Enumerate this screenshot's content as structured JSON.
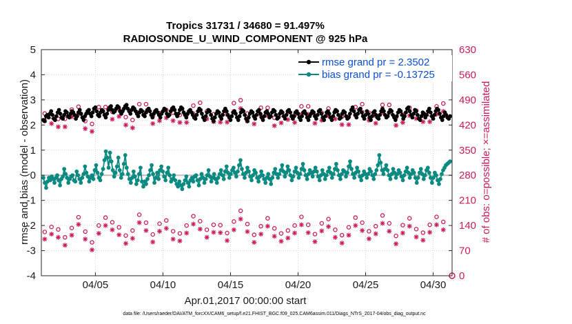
{
  "chart_data": {
    "type": "line",
    "title_line1": "Tropics 31731 / 34680 = 91.497%",
    "title_line2": "RADIOSONDE_U_WIND_COMPONENT @ 925 hPa",
    "xlabel": "Apr.01,2017 00:00:00 start",
    "ylabel": "rmse and bias (model - observation)",
    "y2label": "# of obs: o=possible; ×=assimilated",
    "xlim": [
      0,
      30.4
    ],
    "ylim": [
      -4,
      5
    ],
    "y2lim": [
      0,
      630
    ],
    "xticks": [
      {
        "day": 4,
        "label": "04/05"
      },
      {
        "day": 9,
        "label": "04/10"
      },
      {
        "day": 14,
        "label": "04/15"
      },
      {
        "day": 19,
        "label": "04/20"
      },
      {
        "day": 24,
        "label": "04/25"
      },
      {
        "day": 29,
        "label": "04/30"
      }
    ],
    "yticks": [
      "-4",
      "-3",
      "-2",
      "-1",
      "0",
      "1",
      "2",
      "3",
      "4",
      "5"
    ],
    "y2ticks": [
      "0",
      "70",
      "140",
      "210",
      "280",
      "350",
      "420",
      "490",
      "560",
      "630"
    ],
    "legend": [
      {
        "label": "rmse grand pr = 2.3502",
        "color": "#000000"
      },
      {
        "label": "bias grand pr = -0.13725",
        "color": "#0a8a80"
      }
    ],
    "series": [
      {
        "name": "rmse",
        "color": "#000000",
        "values": [
          2.2,
          2.15,
          2.35,
          2.4,
          2.3,
          2.45,
          2.55,
          2.4,
          2.25,
          2.2,
          2.35,
          2.5,
          2.6,
          2.45,
          2.3,
          2.25,
          2.4,
          2.55,
          2.5,
          2.35,
          2.3,
          2.45,
          2.55,
          2.5,
          2.4,
          2.25,
          2.35,
          2.5,
          2.6,
          2.45,
          2.3,
          2.2,
          2.35,
          2.45,
          2.55,
          2.6,
          2.45,
          2.35,
          2.5,
          2.65,
          2.7,
          2.55,
          2.4,
          2.35,
          2.5,
          2.6,
          2.55,
          2.4,
          2.3,
          2.45,
          2.6,
          2.7,
          2.75,
          2.6,
          2.5,
          2.55,
          2.65,
          2.75,
          2.7,
          2.55,
          2.45,
          2.55,
          2.65,
          2.75,
          2.8,
          2.65,
          2.55,
          2.45,
          2.6,
          2.7,
          2.65,
          2.55,
          2.45,
          2.35,
          2.5,
          2.6,
          2.55,
          2.4,
          2.35,
          2.5,
          2.6,
          2.65,
          2.55,
          2.4,
          2.3,
          2.45,
          2.55,
          2.6,
          2.5,
          2.4,
          2.3,
          2.45,
          2.55,
          2.65,
          2.6,
          2.45,
          2.35,
          2.4,
          2.55,
          2.65,
          2.7,
          2.6,
          2.45,
          2.35,
          2.45,
          2.6,
          2.7,
          2.65,
          2.5,
          2.4,
          2.3,
          2.45,
          2.55,
          2.6,
          2.5,
          2.4,
          2.3,
          2.25,
          2.4,
          2.55,
          2.65,
          2.6,
          2.45,
          2.3,
          2.2,
          2.35,
          2.5,
          2.6,
          2.55,
          2.4,
          2.25,
          2.15,
          2.3,
          2.45,
          2.55,
          2.5,
          2.35,
          2.25,
          2.4,
          2.55,
          2.65,
          2.55,
          2.4,
          2.3,
          2.2,
          2.35,
          2.5,
          2.55,
          2.45,
          2.3,
          2.2,
          2.35,
          2.5,
          2.6,
          2.55,
          2.4,
          2.25,
          2.15,
          2.3,
          2.45,
          2.55,
          2.5,
          2.35,
          2.25,
          2.4,
          2.55,
          2.6,
          2.45,
          2.3,
          2.2,
          2.35,
          2.5,
          2.55,
          2.45,
          2.3,
          2.35,
          2.5,
          2.6,
          2.55,
          2.4,
          2.25,
          2.3,
          2.45,
          2.55,
          2.5,
          2.35,
          2.25,
          2.4,
          2.55,
          2.6,
          2.5,
          2.35,
          2.25,
          2.35,
          2.5,
          2.55,
          2.45,
          2.3,
          2.2,
          2.35,
          2.5,
          2.55,
          2.45,
          2.3,
          2.2,
          2.35,
          2.45,
          2.55,
          2.5,
          2.35,
          2.25,
          2.4,
          2.55,
          2.6,
          2.45,
          2.3,
          2.2,
          2.35,
          2.5,
          2.55,
          2.45,
          2.3,
          2.2,
          2.35,
          2.5,
          2.6,
          2.55,
          2.4,
          2.25,
          2.3,
          2.45,
          2.55,
          2.5,
          2.35,
          2.25,
          2.3,
          2.45,
          2.6,
          2.7,
          2.55,
          2.4,
          2.3,
          2.45,
          2.6,
          2.65,
          2.5,
          2.35,
          2.25,
          2.4,
          2.55,
          2.45,
          2.3,
          2.2,
          2.35,
          2.5,
          2.55,
          2.4,
          2.3,
          2.25,
          2.4,
          2.55,
          2.65,
          2.55,
          2.4,
          2.3,
          2.35,
          2.5,
          2.6,
          2.55,
          2.4,
          2.3,
          2.2,
          2.35,
          2.5,
          2.6,
          2.55,
          2.4,
          2.25,
          2.35,
          2.5,
          2.65,
          2.7,
          2.55,
          2.4,
          2.3,
          2.45,
          2.6,
          2.55,
          2.4,
          2.25,
          2.2,
          2.35,
          2.5,
          2.45,
          2.3,
          2.4,
          2.55,
          2.65,
          2.5,
          2.35,
          2.25,
          2.4,
          2.55,
          2.65,
          2.6,
          2.45,
          2.3,
          2.2,
          2.35,
          2.5,
          2.4,
          2.3,
          2.25,
          2.35
        ]
      },
      {
        "name": "bias",
        "color": "#0a8a80",
        "values": [
          -0.1,
          -0.3,
          -0.5,
          -0.25,
          -0.1,
          -0.2,
          -0.05,
          -0.15,
          -0.3,
          -0.1,
          0.0,
          -0.2,
          -0.4,
          -0.15,
          -0.05,
          0.25,
          0.05,
          -0.1,
          -0.3,
          -0.15,
          -0.05,
          0.0,
          -0.2,
          -0.25,
          0.15,
          0.0,
          -0.15,
          -0.3,
          -0.1,
          0.05,
          0.35,
          0.1,
          -0.05,
          -0.25,
          -0.1,
          0.0,
          -0.15,
          0.2,
          0.4,
          0.1,
          -0.1,
          -0.2,
          0.05,
          0.25,
          0.6,
          0.95,
          0.7,
          0.3,
          0.9,
          0.55,
          0.2,
          -0.05,
          0.1,
          0.35,
          0.7,
          0.2,
          -0.1,
          0.05,
          0.45,
          0.8,
          0.3,
          0.05,
          -0.15,
          -0.3,
          -0.1,
          0.15,
          -0.05,
          -0.35,
          -0.2,
          0.05,
          0.3,
          -0.25,
          -0.45,
          -0.25,
          -0.35,
          -0.15,
          0.0,
          0.2,
          0.4,
          0.05,
          -0.3,
          -0.1,
          0.1,
          -0.15,
          0.2,
          0.35,
          0.15,
          -0.05,
          -0.2,
          0.1,
          0.3,
          0.0,
          -0.25,
          -0.15,
          0.0,
          -0.2,
          -0.35,
          -0.45,
          -0.25,
          -0.4,
          -0.55,
          -0.35,
          -0.2,
          -0.05,
          -0.3,
          -0.45,
          -0.2,
          -0.1,
          -0.25,
          -0.05,
          0.0,
          -0.2,
          -0.4,
          -0.15,
          0.05,
          -0.1,
          -0.3,
          -0.15,
          0.0,
          0.2,
          -0.05,
          -0.25,
          -0.1,
          0.05,
          -0.15,
          -0.3,
          -0.1,
          0.05,
          0.2,
          0.0,
          -0.15,
          0.15,
          0.35,
          0.1,
          -0.1,
          0.05,
          0.2,
          0.3,
          0.1,
          -0.05,
          0.15,
          0.4,
          0.6,
          0.25,
          0.05,
          -0.1,
          0.1,
          0.3,
          0.15,
          -0.05,
          -0.2,
          0.0,
          0.2,
          0.1,
          -0.1,
          -0.25,
          -0.05,
          0.15,
          0.0,
          -0.15,
          -0.3,
          -0.1,
          0.05,
          -0.15,
          -0.35,
          -0.1,
          0.1,
          0.25,
          0.05,
          -0.1,
          0.05,
          0.2,
          0.4,
          0.15,
          -0.05,
          0.1,
          0.35,
          0.2,
          0.0,
          -0.2,
          -0.05,
          0.15,
          0.3,
          0.1,
          -0.1,
          0.05,
          0.25,
          0.45,
          0.2,
          0.0,
          -0.15,
          0.05,
          0.2,
          0.1,
          -0.05,
          0.15,
          0.3,
          0.15,
          -0.05,
          -0.2,
          0.0,
          0.2,
          0.05,
          -0.15,
          0.0,
          0.15,
          0.3,
          0.1,
          -0.1,
          0.05,
          0.25,
          0.45,
          0.2,
          0.0,
          -0.15,
          0.05,
          0.2,
          0.15,
          -0.05,
          0.1,
          0.35,
          0.55,
          0.25,
          0.05,
          -0.1,
          0.1,
          0.3,
          0.15,
          -0.05,
          -0.2,
          0.0,
          0.15,
          0.05,
          -0.1,
          0.05,
          0.25,
          0.15,
          0.0,
          -0.15,
          0.05,
          0.2,
          0.4,
          0.8,
          0.5,
          0.2,
          0.05,
          0.25,
          0.4,
          0.2,
          0.0,
          -0.15,
          0.05,
          0.25,
          0.1,
          -0.1,
          0.05,
          0.2,
          0.1,
          -0.05,
          -0.2,
          0.0,
          0.15,
          0.3,
          0.1,
          -0.1,
          0.05,
          0.2,
          0.1,
          -0.1,
          -0.3,
          -0.1,
          0.1,
          0.25,
          0.05,
          -0.15,
          0.0,
          0.2,
          0.3,
          0.1,
          -0.1,
          -0.3,
          -0.1,
          0.1,
          0.0,
          -0.2,
          -0.35,
          -0.15,
          0.05,
          0.2,
          0.3,
          0.4,
          0.45,
          0.5,
          0.55
        ]
      }
    ],
    "obs_possible": [
      {
        "day": 0,
        "count": 452
      },
      {
        "day": 1,
        "count": 437
      },
      {
        "day": 2,
        "count": 463
      },
      {
        "day": 3,
        "count": 431
      },
      {
        "day": 4,
        "count": 470
      },
      {
        "day": 5,
        "count": 457
      },
      {
        "day": 6,
        "count": 442
      },
      {
        "day": 7,
        "count": 478
      },
      {
        "day": 8,
        "count": 445
      },
      {
        "day": 9,
        "count": 462
      },
      {
        "day": 10,
        "count": 448
      },
      {
        "day": 11,
        "count": 474
      },
      {
        "day": 12,
        "count": 458
      },
      {
        "day": 13,
        "count": 449
      },
      {
        "day": 14,
        "count": 481
      },
      {
        "day": 15,
        "count": 452
      },
      {
        "day": 16,
        "count": 468
      },
      {
        "day": 17,
        "count": 440
      },
      {
        "day": 18,
        "count": 456
      },
      {
        "day": 19,
        "count": 472
      },
      {
        "day": 20,
        "count": 446
      },
      {
        "day": 21,
        "count": 466
      },
      {
        "day": 22,
        "count": 443
      },
      {
        "day": 23,
        "count": 470
      },
      {
        "day": 24,
        "count": 454
      },
      {
        "day": 25,
        "count": 476
      },
      {
        "day": 26,
        "count": 441
      },
      {
        "day": 27,
        "count": 468
      },
      {
        "day": 28,
        "count": 450
      },
      {
        "day": 29,
        "count": 472
      }
    ],
    "obs_assimilated": [
      {
        "day": 0,
        "count": 432
      },
      {
        "day": 1,
        "count": 415
      },
      {
        "day": 2,
        "count": 443
      },
      {
        "day": 3,
        "count": 410
      },
      {
        "day": 4,
        "count": 448
      },
      {
        "day": 5,
        "count": 436
      },
      {
        "day": 6,
        "count": 420
      },
      {
        "day": 7,
        "count": 456
      },
      {
        "day": 8,
        "count": 424
      },
      {
        "day": 9,
        "count": 440
      },
      {
        "day": 10,
        "count": 427
      },
      {
        "day": 11,
        "count": 452
      },
      {
        "day": 12,
        "count": 437
      },
      {
        "day": 13,
        "count": 428
      },
      {
        "day": 14,
        "count": 458
      },
      {
        "day": 15,
        "count": 431
      },
      {
        "day": 16,
        "count": 446
      },
      {
        "day": 17,
        "count": 418
      },
      {
        "day": 18,
        "count": 435
      },
      {
        "day": 19,
        "count": 450
      },
      {
        "day": 20,
        "count": 425
      },
      {
        "day": 21,
        "count": 445
      },
      {
        "day": 22,
        "count": 421
      },
      {
        "day": 23,
        "count": 448
      },
      {
        "day": 24,
        "count": 433
      },
      {
        "day": 25,
        "count": 454
      },
      {
        "day": 26,
        "count": 419
      },
      {
        "day": 27,
        "count": 446
      },
      {
        "day": 28,
        "count": 429
      },
      {
        "day": 29,
        "count": 450
      }
    ]
  },
  "colors": {
    "obs": "#cc1a5c",
    "rmse": "#000000",
    "bias": "#0a8a80",
    "legend_text": "#0a4fd6"
  },
  "footer": "data file: /Users/raeder/DAI/ATM_forcXX/CAM6_setup/f.e21.FHIST_BGC.f09_025.CAM6assim.011/Diags_NTrS_2017-04/obs_diag_output.nc"
}
